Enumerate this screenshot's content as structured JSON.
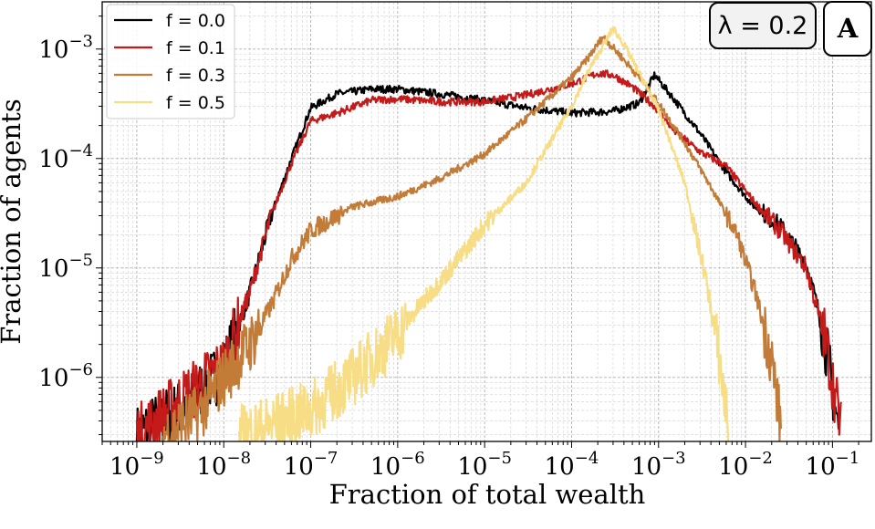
{
  "chart_data": {
    "type": "line",
    "xlabel": "Fraction of total wealth",
    "ylabel": "Fraction of agents",
    "xscale": "log",
    "yscale": "log",
    "xlim": [
      4e-10,
      0.28
    ],
    "ylim": [
      2.6e-07,
      0.0027
    ],
    "grid": true,
    "legend_position": "top-left",
    "x_ticks": [
      {
        "base": "10",
        "exp": "−9",
        "value": 1e-09
      },
      {
        "base": "10",
        "exp": "−8",
        "value": 1e-08
      },
      {
        "base": "10",
        "exp": "−7",
        "value": 1e-07
      },
      {
        "base": "10",
        "exp": "−6",
        "value": 1e-06
      },
      {
        "base": "10",
        "exp": "−5",
        "value": 1e-05
      },
      {
        "base": "10",
        "exp": "−4",
        "value": 0.0001
      },
      {
        "base": "10",
        "exp": "−3",
        "value": 0.001
      },
      {
        "base": "10",
        "exp": "−2",
        "value": 0.01
      },
      {
        "base": "10",
        "exp": "−1",
        "value": 0.1
      }
    ],
    "y_ticks": [
      {
        "base": "10",
        "exp": "−6",
        "value": 1e-06
      },
      {
        "base": "10",
        "exp": "−5",
        "value": 1e-05
      },
      {
        "base": "10",
        "exp": "−4",
        "value": 0.0001
      },
      {
        "base": "10",
        "exp": "−3",
        "value": 0.001
      }
    ],
    "badge": "λ = 0.2",
    "panel_label": "A",
    "series": [
      {
        "name": "f = 0.0",
        "color": "#000000",
        "x": [
          1e-09,
          3e-09,
          1e-08,
          2e-08,
          3.5e-08,
          6e-08,
          1e-07,
          2e-07,
          5e-07,
          1e-06,
          3e-06,
          1e-05,
          3e-05,
          0.0001,
          0.0003,
          0.0006,
          0.0009,
          0.0015,
          0.003,
          0.006,
          0.012,
          0.025,
          0.05,
          0.08,
          0.12
        ],
        "y": [
          3e-07,
          5e-07,
          1.2e-06,
          6e-06,
          3e-05,
          0.0001,
          0.00029,
          0.00039,
          0.00043,
          0.00043,
          0.00039,
          0.00034,
          0.00029,
          0.00026,
          0.00027,
          0.00032,
          0.00058,
          0.00035,
          0.00017,
          7.5e-05,
          3.8e-05,
          2.4e-05,
          1.1e-05,
          2.5e-06,
          3e-07
        ]
      },
      {
        "name": "f = 0.1",
        "color": "#c41a1a",
        "x": [
          1e-09,
          3e-09,
          1e-08,
          2e-08,
          3.5e-08,
          6e-08,
          1e-07,
          2e-07,
          5e-07,
          1e-06,
          3e-06,
          1e-05,
          3e-05,
          0.0001,
          0.0002,
          0.0003,
          0.0005,
          0.0009,
          0.0015,
          0.003,
          0.006,
          0.012,
          0.025,
          0.05,
          0.08,
          0.13
        ],
        "y": [
          3e-07,
          6e-07,
          1.3e-06,
          6e-06,
          3e-05,
          9e-05,
          0.00022,
          0.00026,
          0.00034,
          0.00035,
          0.00033,
          0.00033,
          0.00038,
          0.00048,
          0.0006,
          0.00058,
          0.00045,
          0.0003,
          0.00018,
          0.000115,
          8.5e-05,
          4.2e-05,
          2.2e-05,
          1e-05,
          2.5e-06,
          3e-07
        ]
      },
      {
        "name": "f = 0.3",
        "color": "#c27c38",
        "x": [
          2e-09,
          5e-09,
          1e-08,
          2e-08,
          3.5e-08,
          6e-08,
          1e-07,
          3e-07,
          1e-06,
          3e-06,
          1e-05,
          3e-05,
          0.0001,
          0.00015,
          0.00023,
          0.00035,
          0.0006,
          0.001,
          0.002,
          0.004,
          0.008,
          0.013,
          0.02,
          0.026
        ],
        "y": [
          3e-07,
          4.5e-07,
          1e-06,
          2e-06,
          4.5e-06,
          1.2e-05,
          2.2e-05,
          3.6e-05,
          4.5e-05,
          6.5e-05,
          0.00011,
          0.00023,
          0.00055,
          0.0008,
          0.0013,
          0.0009,
          0.00055,
          0.00032,
          0.00014,
          5.5e-05,
          2e-05,
          6e-06,
          1.5e-06,
          3e-07
        ]
      },
      {
        "name": "f = 0.5",
        "color": "#f7dd85",
        "x": [
          1.5e-08,
          3e-08,
          1e-07,
          3e-07,
          1e-06,
          2e-06,
          5e-06,
          1e-05,
          3e-05,
          0.0001,
          0.00016,
          0.00025,
          0.0003,
          0.0004,
          0.0006,
          0.001,
          0.002,
          0.0035,
          0.005,
          0.0065
        ],
        "y": [
          3e-07,
          3.5e-07,
          5e-07,
          1e-06,
          2.5e-06,
          5e-06,
          1.2e-05,
          2.5e-05,
          6e-05,
          0.0003,
          0.00065,
          0.0012,
          0.00155,
          0.0011,
          0.0006,
          0.00028,
          6e-05,
          8e-06,
          1.5e-06,
          3e-07
        ]
      }
    ]
  }
}
